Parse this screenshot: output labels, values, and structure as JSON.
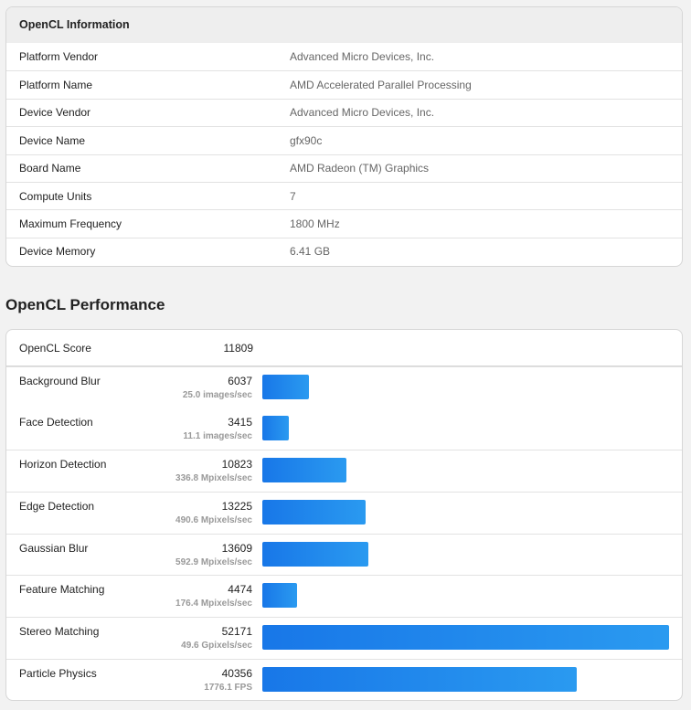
{
  "info": {
    "title": "OpenCL Information",
    "rows": [
      {
        "k": "Platform Vendor",
        "v": "Advanced Micro Devices, Inc."
      },
      {
        "k": "Platform Name",
        "v": "AMD Accelerated Parallel Processing"
      },
      {
        "k": "Device Vendor",
        "v": "Advanced Micro Devices, Inc."
      },
      {
        "k": "Device Name",
        "v": "gfx90c"
      },
      {
        "k": "Board Name",
        "v": "AMD Radeon (TM) Graphics"
      },
      {
        "k": "Compute Units",
        "v": "7"
      },
      {
        "k": "Maximum Frequency",
        "v": "1800 MHz"
      },
      {
        "k": "Device Memory",
        "v": "6.41 GB"
      }
    ]
  },
  "perf": {
    "title": "OpenCL Performance",
    "score_label": "OpenCL Score",
    "score": "11809",
    "bar_color": "#1f85ec",
    "rows": [
      {
        "k": "Background Blur",
        "n": "6037",
        "u": "25.0 images/sec"
      },
      {
        "k": "Face Detection",
        "n": "3415",
        "u": "11.1 images/sec"
      },
      {
        "k": "Horizon Detection",
        "n": "10823",
        "u": "336.8 Mpixels/sec"
      },
      {
        "k": "Edge Detection",
        "n": "13225",
        "u": "490.6 Mpixels/sec"
      },
      {
        "k": "Gaussian Blur",
        "n": "13609",
        "u": "592.9 Mpixels/sec"
      },
      {
        "k": "Feature Matching",
        "n": "4474",
        "u": "176.4 Mpixels/sec"
      },
      {
        "k": "Stereo Matching",
        "n": "52171",
        "u": "49.6 Gpixels/sec"
      },
      {
        "k": "Particle Physics",
        "n": "40356",
        "u": "1776.1 FPS"
      }
    ]
  }
}
